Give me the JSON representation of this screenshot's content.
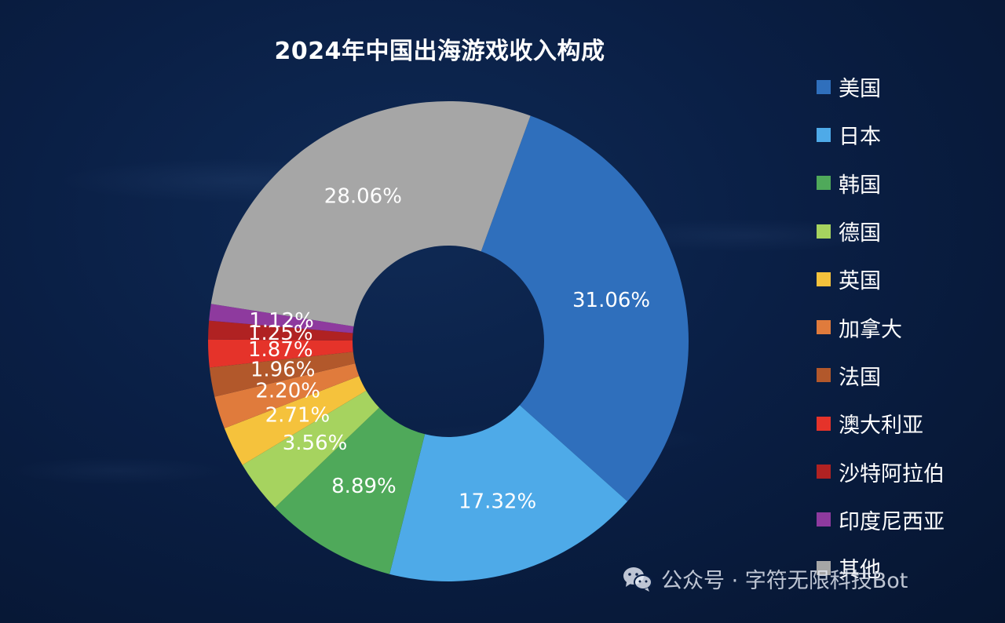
{
  "watermark": {
    "text": "公众号 · 字符无限科技Bot",
    "icon": "wechat-icon"
  },
  "colors": {
    "background": "#061530",
    "text": "#ffffff"
  },
  "chart_data": {
    "type": "pie",
    "variant": "donut",
    "title": "2024年中国出海游戏收入构成",
    "legend_position": "right",
    "categories": [
      "美国",
      "日本",
      "韩国",
      "德国",
      "英国",
      "加拿大",
      "法国",
      "澳大利亚",
      "沙特阿拉伯",
      "印度尼西亚",
      "其他"
    ],
    "values": [
      31.06,
      17.32,
      8.89,
      3.56,
      2.71,
      2.2,
      1.96,
      1.87,
      1.25,
      1.12,
      28.06
    ],
    "labels": [
      "31.06%",
      "17.32%",
      "8.89%",
      "3.56%",
      "2.71%",
      "2.20%",
      "1.96%",
      "1.87%",
      "1.25%",
      "1.12%",
      "28.06%"
    ],
    "unit": "%",
    "colors": [
      "#2f6fbc",
      "#4eaae8",
      "#4fa95a",
      "#a6d35f",
      "#f5c23c",
      "#e07b3c",
      "#b2582b",
      "#e5332a",
      "#b02222",
      "#8e3a9e",
      "#a6a6a6"
    ]
  }
}
